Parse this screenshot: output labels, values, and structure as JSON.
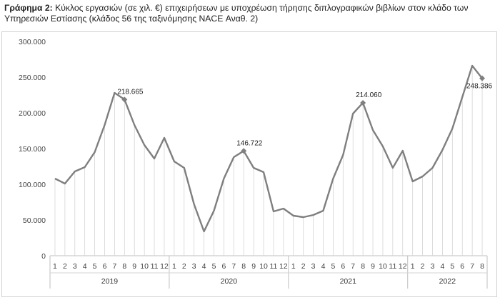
{
  "caption": {
    "label": "Γράφημα 2:",
    "text": " Κύκλος εργασιών (σε χιλ. €) επιχειρήσεων με υποχρέωση τήρησης διπλογραφικών βιβλίων στον κλάδο των Υπηρεσιών Εστίασης (κλάδος 56 της ταξινόμησης NACE Αναθ. 2)"
  },
  "chart_data": {
    "type": "line",
    "title": "",
    "xlabel": "",
    "ylabel": "",
    "ylim": [
      0,
      300000
    ],
    "yticks": [
      0,
      50000,
      100000,
      150000,
      200000,
      250000,
      300000
    ],
    "ytick_labels": [
      "0",
      "50.000",
      "100.000",
      "150.000",
      "200.000",
      "250.000",
      "300.000"
    ],
    "grid": "vertical drop lines",
    "color": "#7f7f7f",
    "years": [
      {
        "label": "2019",
        "months": [
          "1",
          "2",
          "3",
          "4",
          "5",
          "6",
          "7",
          "8",
          "9",
          "10",
          "11",
          "12"
        ]
      },
      {
        "label": "2020",
        "months": [
          "1",
          "2",
          "3",
          "4",
          "5",
          "6",
          "7",
          "8",
          "9",
          "10",
          "11",
          "12"
        ]
      },
      {
        "label": "2021",
        "months": [
          "1",
          "2",
          "3",
          "4",
          "5",
          "6",
          "7",
          "8",
          "9",
          "10",
          "11",
          "12"
        ]
      },
      {
        "label": "2022",
        "months": [
          "1",
          "2",
          "3",
          "4",
          "5",
          "6",
          "7",
          "8"
        ]
      }
    ],
    "values": [
      108000,
      101000,
      118000,
      124000,
      145000,
      183000,
      228000,
      218665,
      183000,
      155000,
      136000,
      165000,
      132000,
      123000,
      72000,
      34000,
      63000,
      108000,
      138000,
      146722,
      123000,
      117000,
      62000,
      66000,
      56000,
      54000,
      57000,
      63000,
      108000,
      141000,
      199000,
      214060,
      176000,
      153000,
      123000,
      147000,
      104000,
      111000,
      123000,
      148000,
      178000,
      222000,
      266000,
      248386
    ],
    "annotations": [
      {
        "index": 7,
        "text": "218.665"
      },
      {
        "index": 19,
        "text": "146.722"
      },
      {
        "index": 31,
        "text": "214.060"
      },
      {
        "index": 43,
        "text": "248.386"
      }
    ]
  }
}
